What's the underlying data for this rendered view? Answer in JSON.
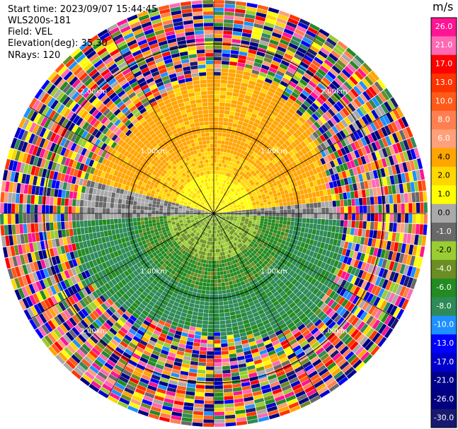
{
  "header": {
    "start_time": "Start time: 2023/09/07 15:44:45",
    "instrument": "WLS200s-181",
    "field": "Field: VEL",
    "elevation": "Elevation(deg): 35.30",
    "nrays": "NRays: 120"
  },
  "chart_data": {
    "type": "heatmap",
    "projection": "polar",
    "field": "VEL",
    "nrays": 120,
    "range_rings_km": [
      1.0,
      2.0
    ],
    "ring_labels": [
      "1.00km",
      "2.00km"
    ],
    "colorbar": {
      "unit": "m/s",
      "ticks": [
        "26.0",
        "21.0",
        "17.0",
        "13.0",
        "10.0",
        "8.0",
        "6.0",
        "4.0",
        "2.0",
        "1.0",
        "0.0",
        "-1.0",
        "-2.0",
        "-4.0",
        "-6.0",
        "-8.0",
        "-10.0",
        "-13.0",
        "-17.0",
        "-21.0",
        "-26.0",
        "-30.0"
      ],
      "colors": [
        "#ff1493",
        "#ff69b4",
        "#ff0000",
        "#ff3300",
        "#ff5a1a",
        "#ff7f50",
        "#ffa07a",
        "#ffa500",
        "#ffd700",
        "#ffff00",
        "#a9a9a9",
        "#696969",
        "#9acd32",
        "#6b8e23",
        "#228b22",
        "#2e8b57",
        "#1e90ff",
        "#0000ff",
        "#0000cd",
        "#00008b",
        "#000080",
        "#191970"
      ]
    },
    "field_regions": [
      {
        "name": "noise",
        "ranges_km": [
          1.6,
          2.5
        ],
        "values_m_s": "random"
      },
      {
        "name": "upper-wind",
        "sector": "north",
        "value_m_s": 6.0
      },
      {
        "name": "mid-wind",
        "sector": "north",
        "value_m_s": 2.0
      },
      {
        "name": "zero-band",
        "value_m_s": 0.0
      },
      {
        "name": "lower-wind",
        "sector": "south",
        "value_m_s": -4.0
      }
    ]
  }
}
